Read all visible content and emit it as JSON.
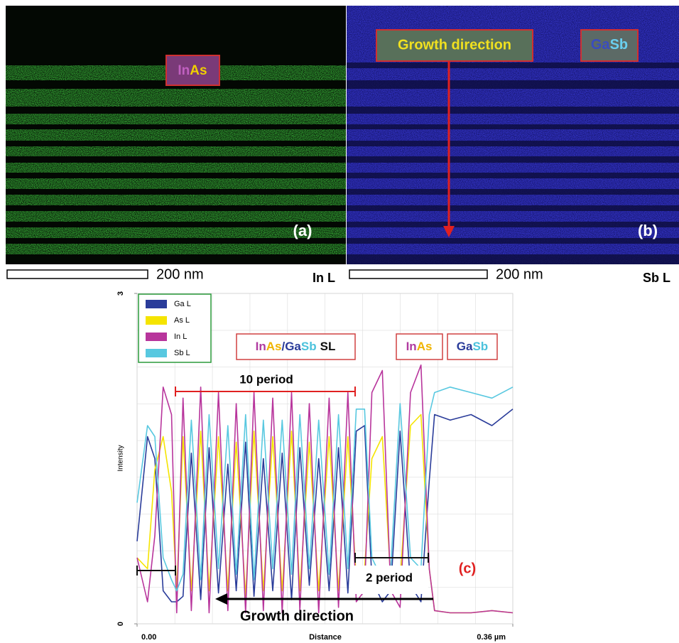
{
  "panels": [
    {
      "id": "(a)",
      "badge": [
        "In",
        "As"
      ],
      "scale": "200 nm",
      "element": "In L"
    },
    {
      "id": "(b)",
      "annotation": "Growth direction",
      "badge": [
        "Ga",
        "Sb"
      ],
      "scale": "200 nm",
      "element": "Sb L"
    }
  ],
  "chart_data": {
    "type": "line",
    "id": "(c)",
    "xlabel": "Distance",
    "ylabel": "Intensity",
    "x": [
      0.0,
      0.01,
      0.017,
      0.025,
      0.033,
      0.038,
      0.044,
      0.052,
      0.061,
      0.069,
      0.078,
      0.087,
      0.095,
      0.104,
      0.112,
      0.121,
      0.13,
      0.139,
      0.148,
      0.156,
      0.165,
      0.174,
      0.184,
      0.193,
      0.202,
      0.21,
      0.218,
      0.225,
      0.235,
      0.243,
      0.252,
      0.262,
      0.272,
      0.28,
      0.285,
      0.3,
      0.32,
      0.34,
      0.36
    ],
    "series": [
      {
        "name": "Ga L",
        "color": "#2a3c9a",
        "values": [
          0.75,
          1.7,
          1.5,
          0.3,
          0.2,
          0.2,
          0.25,
          1.55,
          0.22,
          1.6,
          0.28,
          1.45,
          0.3,
          1.65,
          0.25,
          1.5,
          0.3,
          1.55,
          0.22,
          1.6,
          0.35,
          1.5,
          0.3,
          1.6,
          0.28,
          1.75,
          1.8,
          0.4,
          0.2,
          0.3,
          1.75,
          0.35,
          0.2,
          1.3,
          1.9,
          1.85,
          1.9,
          1.8,
          1.95
        ]
      },
      {
        "name": "As L",
        "color": "#f5e400",
        "values": [
          0.6,
          0.5,
          1.4,
          1.7,
          1.2,
          0.3,
          1.7,
          0.3,
          1.75,
          0.3,
          1.7,
          0.3,
          1.65,
          0.25,
          1.75,
          0.3,
          1.7,
          0.3,
          1.75,
          0.3,
          1.65,
          0.3,
          1.7,
          0.3,
          1.7,
          0.4,
          0.5,
          1.5,
          1.7,
          0.4,
          0.4,
          1.8,
          1.9,
          0.5,
          0.12,
          0.1,
          0.1,
          0.12,
          0.1
        ]
      },
      {
        "name": "In L",
        "color": "#b8359c",
        "values": [
          0.6,
          0.2,
          0.8,
          2.15,
          1.9,
          0.1,
          2.05,
          0.12,
          2.15,
          0.1,
          2.1,
          0.12,
          2.0,
          0.1,
          2.1,
          0.12,
          2.05,
          0.1,
          2.1,
          0.12,
          2.0,
          0.1,
          2.05,
          0.15,
          2.1,
          0.2,
          0.3,
          2.1,
          2.3,
          0.3,
          0.15,
          2.1,
          2.35,
          0.5,
          0.12,
          0.1,
          0.1,
          0.12,
          0.1
        ]
      },
      {
        "name": "Sb L",
        "color": "#58c8e0",
        "values": [
          1.1,
          1.8,
          1.7,
          0.6,
          0.4,
          0.3,
          0.45,
          1.85,
          0.4,
          1.9,
          0.5,
          1.8,
          0.45,
          1.9,
          0.4,
          1.85,
          0.5,
          1.85,
          0.45,
          1.9,
          0.5,
          1.85,
          0.45,
          1.9,
          0.5,
          1.95,
          1.95,
          0.6,
          0.4,
          0.5,
          2.0,
          0.6,
          0.5,
          1.9,
          2.1,
          2.15,
          2.1,
          2.05,
          2.15
        ]
      }
    ],
    "xlim": [
      0,
      0.36
    ],
    "ylim": [
      0,
      3
    ],
    "xticks": [
      {
        "value": 0,
        "label": "0.00"
      },
      {
        "value": 0.36,
        "label": "0.36 µm"
      }
    ],
    "yticks": [
      0,
      3
    ],
    "legend": "upper left",
    "annotations": {
      "sl": [
        "In",
        "As",
        "/",
        "Ga",
        "Sb",
        "SL"
      ],
      "inas": [
        "In",
        "As"
      ],
      "gasb": [
        "Ga",
        "Sb"
      ],
      "period10": "10 period",
      "period2": "2 period",
      "growth": "Growth direction"
    }
  }
}
